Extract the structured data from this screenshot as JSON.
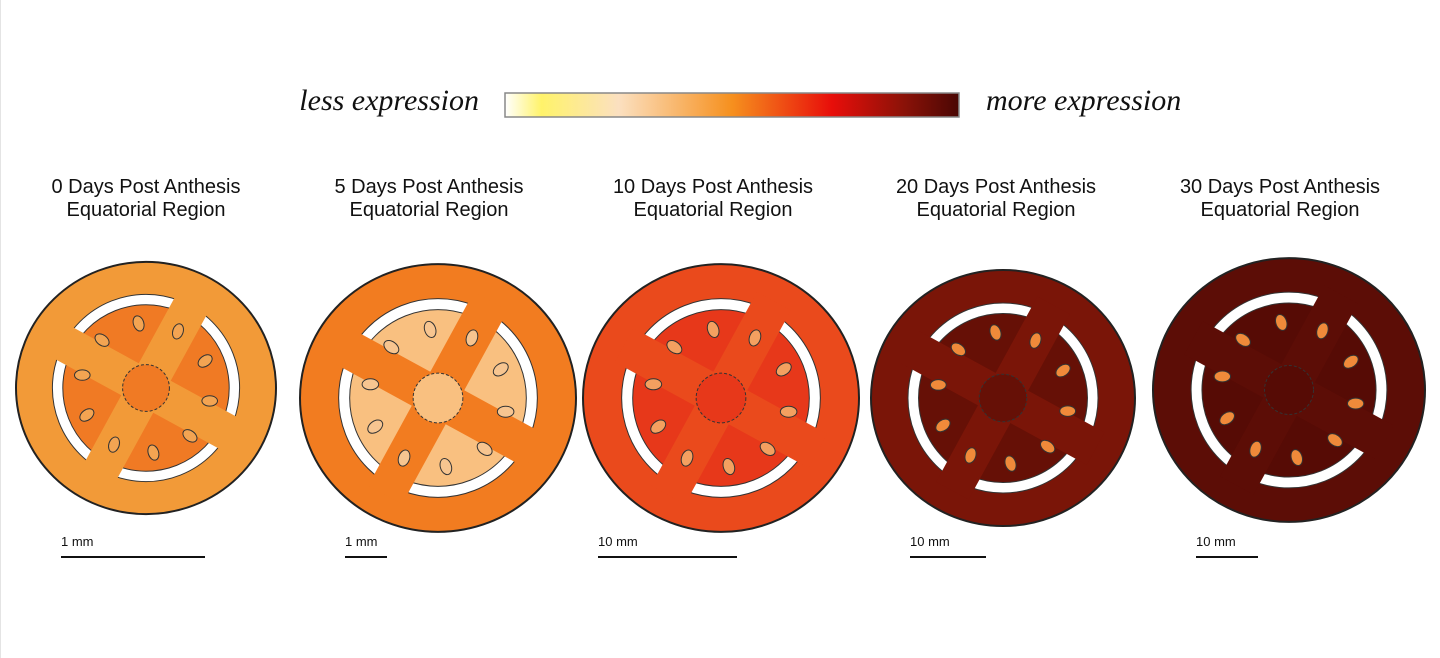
{
  "legend": {
    "low_label": "less expression",
    "high_label": "more expression"
  },
  "panels": [
    {
      "title": "0 Days Post Anthesis",
      "subtitle": "Equatorial Region",
      "scale": "1 mm"
    },
    {
      "title": "5 Days Post Anthesis",
      "subtitle": "Equatorial Region",
      "scale": "1 mm"
    },
    {
      "title": "10 Days Post Anthesis",
      "subtitle": "Equatorial Region",
      "scale": "10 mm"
    },
    {
      "title": "20 Days Post Anthesis",
      "subtitle": "Equatorial Region",
      "scale": "10 mm"
    },
    {
      "title": "30 Days Post Anthesis",
      "subtitle": "Equatorial Region",
      "scale": "10 mm"
    }
  ]
}
